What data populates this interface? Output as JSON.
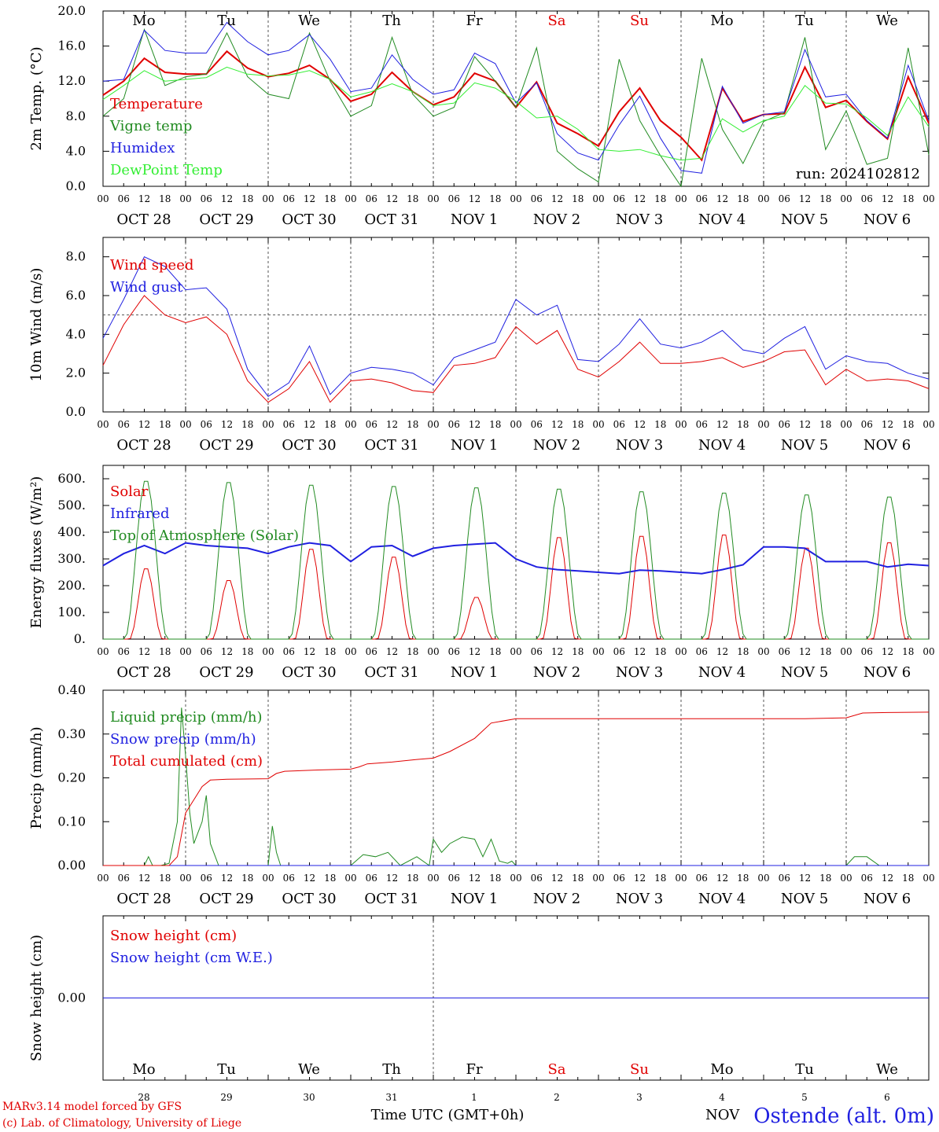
{
  "meta": {
    "run": "run: 2024102812",
    "footer_line1": "MARv3.14 model forced by GFS",
    "footer_line2": "(c) Lab. of Climatology, University of Liege",
    "xaxis_title": "Time UTC (GMT+0h)",
    "station": "Ostende (alt. 0m)",
    "nov_stub": "NOV"
  },
  "axis": {
    "day_names": [
      "Mo",
      "Tu",
      "We",
      "Th",
      "Fr",
      "Sa",
      "Su",
      "Mo",
      "Tu",
      "We"
    ],
    "weekend_day_indices": [
      5,
      6
    ],
    "date_labels": [
      "OCT 28",
      "OCT 29",
      "OCT 30",
      "OCT 31",
      "NOV  1",
      "NOV  2",
      "NOV  3",
      "NOV  4",
      "NOV  5",
      "NOV  6"
    ],
    "day_numbers": [
      "28",
      "29",
      "30",
      "31",
      "1",
      "2",
      "3",
      "4",
      "5",
      "6"
    ],
    "hour_labels": [
      "00",
      "06",
      "12",
      "18"
    ],
    "colors": {
      "weekday": "#000000",
      "weekend": "#e00000"
    }
  },
  "chart_data": [
    {
      "id": "temperature",
      "type": "line",
      "ylabel": "2m Temp. (°C)",
      "ylim": [
        0,
        20
      ],
      "yticks": [
        "0.0",
        "4.0",
        "8.0",
        "12.0",
        "16.0",
        "20.0"
      ],
      "x_unit": "day index (0 = Oct 28 00 UTC)",
      "series": [
        {
          "name": "Temperature",
          "color": "#e00000",
          "width": 2,
          "x": [
            0,
            0.25,
            0.5,
            0.75,
            1,
            1.25,
            1.5,
            1.75,
            2,
            2.25,
            2.5,
            2.75,
            3,
            3.25,
            3.5,
            3.75,
            4,
            4.25,
            4.5,
            4.75,
            5,
            5.25,
            5.5,
            5.75,
            6,
            6.25,
            6.5,
            6.75,
            7,
            7.25,
            7.5,
            7.75,
            8,
            8.25,
            8.5,
            8.75,
            9,
            9.25,
            9.5,
            9.75,
            10
          ],
          "y": [
            10.4,
            12,
            14.6,
            13,
            12.8,
            12.8,
            15.4,
            13.5,
            12.5,
            12.9,
            13.8,
            12.2,
            9.7,
            10.5,
            13,
            10.8,
            9.3,
            10.2,
            12.9,
            12,
            9,
            11.9,
            7.2,
            6,
            4.6,
            8.5,
            11.2,
            7.5,
            5.6,
            3,
            11.2,
            7.4,
            8.2,
            8.3,
            13.6,
            9,
            9.8,
            7.4,
            5.4,
            12.5,
            7.2
          ]
        },
        {
          "name": "Vigne temp",
          "color": "#228b22",
          "width": 1,
          "x": [
            0,
            0.25,
            0.5,
            0.75,
            1,
            1.25,
            1.5,
            1.75,
            2,
            2.25,
            2.5,
            2.75,
            3,
            3.25,
            3.5,
            3.75,
            4,
            4.25,
            4.5,
            4.75,
            5,
            5.25,
            5.5,
            5.75,
            6,
            6.25,
            6.5,
            6.75,
            7,
            7.25,
            7.5,
            7.75,
            8,
            8.25,
            8.5,
            8.75,
            9,
            9.25,
            9.5,
            9.75,
            10
          ],
          "y": [
            8,
            10,
            17.9,
            11.5,
            12.5,
            12.8,
            17.5,
            12.5,
            10.5,
            10,
            17.5,
            12,
            8,
            9.2,
            17,
            10.5,
            8,
            9,
            14.8,
            12,
            9,
            15.8,
            4,
            2,
            0.5,
            14.5,
            7.5,
            3.5,
            0,
            14.6,
            6.5,
            2.6,
            7.4,
            8.4,
            17,
            4.2,
            8.6,
            2.5,
            3.2,
            15.8,
            3.6
          ]
        },
        {
          "name": "Humidex",
          "color": "#2020e0",
          "width": 1,
          "x": [
            0,
            0.25,
            0.5,
            0.75,
            1,
            1.25,
            1.5,
            1.75,
            2,
            2.25,
            2.5,
            2.75,
            3,
            3.25,
            3.5,
            3.75,
            4,
            4.25,
            4.5,
            4.75,
            5,
            5.25,
            5.5,
            5.75,
            6,
            6.25,
            6.5,
            6.75,
            7,
            7.25,
            7.5,
            7.75,
            8,
            8.25,
            8.5,
            8.75,
            9,
            9.25,
            9.5,
            9.75,
            10
          ],
          "y": [
            12,
            12.2,
            17.8,
            15.5,
            15.2,
            15.2,
            18.7,
            16.5,
            15,
            15.5,
            17.3,
            14.5,
            10.8,
            11.2,
            15,
            12.2,
            10.5,
            11,
            15.2,
            14,
            9.5,
            11.8,
            6,
            3.8,
            3,
            7,
            10.3,
            5.5,
            1.8,
            1.5,
            11.4,
            7.2,
            8.2,
            8.5,
            15.6,
            10.2,
            10.5,
            7.5,
            5.5,
            13.8,
            7.5
          ]
        },
        {
          "name": "DewPoint Temp",
          "color": "#33ee33",
          "width": 1,
          "x": [
            0,
            0.25,
            0.5,
            0.75,
            1,
            1.25,
            1.5,
            1.75,
            2,
            2.25,
            2.5,
            2.75,
            3,
            3.25,
            3.5,
            3.75,
            4,
            4.25,
            4.5,
            4.75,
            5,
            5.25,
            5.5,
            5.75,
            6,
            6.25,
            6.5,
            6.75,
            7,
            7.25,
            7.5,
            7.75,
            8,
            8.25,
            8.5,
            8.75,
            9,
            9.25,
            9.5,
            9.75,
            10
          ],
          "y": [
            9.9,
            11.5,
            13.2,
            12,
            12.2,
            12.4,
            13.6,
            12.8,
            12.6,
            12.7,
            13.2,
            12.2,
            10.2,
            10.8,
            11.7,
            10.8,
            9.2,
            9.5,
            11.8,
            11.2,
            9.7,
            7.8,
            8,
            6.5,
            4.2,
            4,
            4.2,
            3.5,
            3,
            3.2,
            7.7,
            6.2,
            7.5,
            8,
            11.5,
            9.5,
            9.4,
            7.8,
            5.8,
            10.2,
            6.8
          ]
        }
      ]
    },
    {
      "id": "wind",
      "type": "line",
      "ylabel": "10m Wind (m/s)",
      "ylim": [
        0,
        9
      ],
      "yticks": [
        "0.0",
        "2.0",
        "4.0",
        "6.0",
        "8.0"
      ],
      "reference_line": 5,
      "series": [
        {
          "name": "Wind speed",
          "color": "#e00000",
          "width": 1,
          "x": [
            0,
            0.25,
            0.5,
            0.75,
            1,
            1.25,
            1.5,
            1.75,
            2,
            2.25,
            2.5,
            2.75,
            3,
            3.25,
            3.5,
            3.75,
            4,
            4.25,
            4.5,
            4.75,
            5,
            5.25,
            5.5,
            5.75,
            6,
            6.25,
            6.5,
            6.75,
            7,
            7.25,
            7.5,
            7.75,
            8,
            8.25,
            8.5,
            8.75,
            9,
            9.25,
            9.5,
            9.75,
            10
          ],
          "y": [
            2.4,
            4.5,
            6,
            5,
            4.6,
            4.9,
            4,
            1.6,
            0.5,
            1.2,
            2.6,
            0.5,
            1.6,
            1.7,
            1.5,
            1.1,
            1,
            2.4,
            2.5,
            2.8,
            4.4,
            3.5,
            4.2,
            2.2,
            1.8,
            2.6,
            3.6,
            2.5,
            2.5,
            2.6,
            2.8,
            2.3,
            2.6,
            3.1,
            3.2,
            1.4,
            2.2,
            1.6,
            1.7,
            1.6,
            1.2
          ]
        },
        {
          "name": "Wind gust",
          "color": "#2020e0",
          "width": 1,
          "x": [
            0,
            0.25,
            0.5,
            0.75,
            1,
            1.25,
            1.5,
            1.75,
            2,
            2.25,
            2.5,
            2.75,
            3,
            3.25,
            3.5,
            3.75,
            4,
            4.25,
            4.5,
            4.75,
            5,
            5.25,
            5.5,
            5.75,
            6,
            6.25,
            6.5,
            6.75,
            7,
            7.25,
            7.5,
            7.75,
            8,
            8.25,
            8.5,
            8.75,
            9,
            9.25,
            9.5,
            9.75,
            10
          ],
          "y": [
            3.8,
            5.8,
            8,
            7.5,
            6.3,
            6.4,
            5.3,
            2.2,
            0.8,
            1.5,
            3.4,
            0.9,
            2,
            2.3,
            2.2,
            2,
            1.4,
            2.8,
            3.2,
            3.6,
            5.8,
            5,
            5.5,
            2.7,
            2.6,
            3.5,
            4.8,
            3.5,
            3.3,
            3.6,
            4.2,
            3.2,
            3,
            3.8,
            4.4,
            2.2,
            2.9,
            2.6,
            2.5,
            2,
            1.7
          ]
        }
      ]
    },
    {
      "id": "energy",
      "type": "line",
      "ylabel": "Energy fluxes (W/m²)",
      "ylim": [
        0,
        650
      ],
      "yticks": [
        "0.",
        "100.",
        "200.",
        "300.",
        "400.",
        "500.",
        "600."
      ],
      "series": [
        {
          "name": "Solar",
          "color": "#e00000",
          "width": 1,
          "peaks": [
            270,
            225,
            345,
            315,
            160,
            390,
            395,
            400,
            350,
            370
          ]
        },
        {
          "name": "Infrared",
          "color": "#2020e0",
          "width": 2,
          "x": [
            0,
            0.25,
            0.5,
            0.75,
            1,
            1.25,
            1.5,
            1.75,
            2,
            2.25,
            2.5,
            2.75,
            3,
            3.25,
            3.5,
            3.75,
            4,
            4.25,
            4.5,
            4.75,
            5,
            5.25,
            5.5,
            5.75,
            6,
            6.25,
            6.5,
            6.75,
            7,
            7.25,
            7.5,
            7.75,
            8,
            8.25,
            8.5,
            8.75,
            9,
            9.25,
            9.5,
            9.75,
            10
          ],
          "y": [
            275,
            320,
            350,
            320,
            360,
            350,
            345,
            340,
            320,
            345,
            360,
            350,
            290,
            345,
            350,
            310,
            340,
            350,
            355,
            360,
            300,
            270,
            260,
            255,
            250,
            245,
            258,
            255,
            250,
            245,
            260,
            278,
            345,
            345,
            340,
            290,
            290,
            290,
            270,
            280,
            275
          ]
        },
        {
          "name": "Top of Atmosphere (Solar)",
          "color": "#228b22",
          "width": 1,
          "peaks": [
            600,
            595,
            585,
            580,
            575,
            570,
            560,
            555,
            548,
            540
          ]
        }
      ]
    },
    {
      "id": "precip",
      "type": "line",
      "ylabel": "Precip (mm/h)",
      "ylim": [
        0,
        0.4
      ],
      "yticks": [
        "0.00",
        "0.10",
        "0.20",
        "0.30",
        "0.40"
      ],
      "series": [
        {
          "name": "Liquid precip (mm/h)",
          "color": "#228b22",
          "width": 1,
          "x": [
            0,
            0.5,
            0.55,
            0.6,
            0.7,
            0.8,
            0.9,
            0.95,
            1,
            1.05,
            1.1,
            1.2,
            1.25,
            1.3,
            1.4,
            1.5,
            2,
            2.05,
            2.1,
            2.15,
            2.3,
            3,
            3.15,
            3.3,
            3.45,
            3.6,
            3.8,
            3.95,
            4,
            4.1,
            4.2,
            4.35,
            4.5,
            4.6,
            4.7,
            4.8,
            4.9,
            4.95,
            5,
            9,
            9.1,
            9.25,
            9.4,
            9.5,
            10
          ],
          "y": [
            0,
            0,
            0.02,
            0,
            0,
            0.005,
            0.1,
            0.36,
            0.25,
            0.12,
            0.05,
            0.1,
            0.16,
            0.05,
            0,
            0,
            0,
            0.09,
            0.03,
            0,
            0,
            0,
            0.025,
            0.02,
            0.03,
            0,
            0.02,
            0,
            0.06,
            0.03,
            0.05,
            0.065,
            0.06,
            0.02,
            0.06,
            0.01,
            0.005,
            0.01,
            0,
            0,
            0.02,
            0.02,
            0,
            0,
            0
          ]
        },
        {
          "name": "Snow precip (mm/h)",
          "color": "#2020e0",
          "width": 1,
          "x": [
            0,
            10
          ],
          "y": [
            0,
            0
          ]
        },
        {
          "name": "Total cumulated (cm)",
          "color": "#e00000",
          "width": 1,
          "x": [
            0,
            0.8,
            0.9,
            1,
            1.1,
            1.2,
            1.3,
            1.5,
            2,
            2.1,
            2.2,
            2.6,
            3,
            3.1,
            3.2,
            3.5,
            3.8,
            4,
            4.2,
            4.5,
            4.7,
            5,
            5.5,
            6,
            8,
            8.5,
            9,
            9.2,
            9.5,
            10
          ],
          "y": [
            0,
            0,
            0.02,
            0.12,
            0.15,
            0.18,
            0.195,
            0.197,
            0.198,
            0.21,
            0.215,
            0.218,
            0.22,
            0.225,
            0.232,
            0.236,
            0.242,
            0.245,
            0.26,
            0.29,
            0.325,
            0.335,
            0.335,
            0.335,
            0.335,
            0.335,
            0.337,
            0.348,
            0.349,
            0.35
          ]
        }
      ]
    },
    {
      "id": "snow",
      "type": "line",
      "ylabel": "Snow height (cm)",
      "ylim": [
        -1,
        1
      ],
      "yticks": [
        "0.00"
      ],
      "series": [
        {
          "name": "Snow height (cm)",
          "color": "#e00000",
          "width": 1,
          "x": [
            0,
            10
          ],
          "y": [
            0,
            0
          ]
        },
        {
          "name": "Snow height (cm W.E.)",
          "color": "#2020e0",
          "width": 1,
          "x": [
            0,
            10
          ],
          "y": [
            0,
            0
          ]
        }
      ]
    }
  ]
}
